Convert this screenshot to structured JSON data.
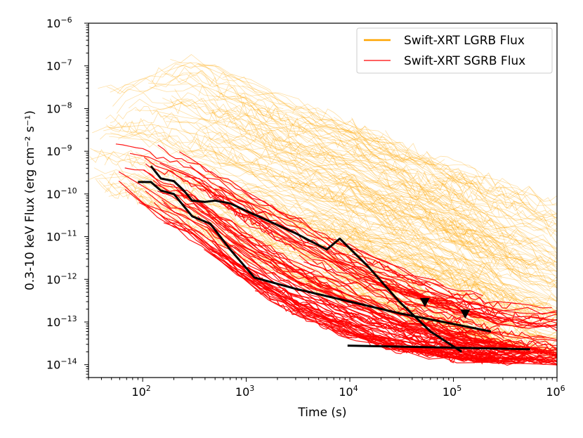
{
  "chart_data": {
    "type": "line",
    "title": "",
    "xlabel": "Time (s)",
    "ylabel": "0.3-10 keV Flux (erg cm⁻² s⁻¹)",
    "xscale": "log",
    "yscale": "log",
    "xlim": [
      30,
      1000000
    ],
    "ylim": [
      5e-15,
      1e-06
    ],
    "x_ticks": [
      {
        "value": 100,
        "base": "10",
        "exp": "2"
      },
      {
        "value": 1000,
        "base": "10",
        "exp": "3"
      },
      {
        "value": 10000,
        "base": "10",
        "exp": "4"
      },
      {
        "value": 100000,
        "base": "10",
        "exp": "5"
      },
      {
        "value": 1000000,
        "base": "10",
        "exp": "6"
      }
    ],
    "y_ticks": [
      {
        "value": 1e-14,
        "base": "10",
        "exp": "−14"
      },
      {
        "value": 1e-13,
        "base": "10",
        "exp": "−13"
      },
      {
        "value": 1e-12,
        "base": "10",
        "exp": "−12"
      },
      {
        "value": 1e-11,
        "base": "10",
        "exp": "−11"
      },
      {
        "value": 1e-10,
        "base": "10",
        "exp": "−10"
      },
      {
        "value": 1e-09,
        "base": "10",
        "exp": "−9"
      },
      {
        "value": 1e-08,
        "base": "10",
        "exp": "−8"
      },
      {
        "value": 1e-07,
        "base": "10",
        "exp": "−7"
      },
      {
        "value": 1e-06,
        "base": "10",
        "exp": "−6"
      }
    ],
    "legend": {
      "position": "top-right",
      "entries": [
        {
          "label": "Swift-XRT LGRB Flux",
          "color": "#ffa500"
        },
        {
          "label": "Swift-XRT SGRB Flux",
          "color": "#ff0000"
        }
      ]
    },
    "series": [
      {
        "name": "Swift-XRT LGRB Flux",
        "color": "#ffa500",
        "band": {
          "x": [
            30,
            100,
            300,
            1000,
            3000,
            10000,
            30000,
            100000,
            300000,
            1000000
          ],
          "upper": [
            3e-08,
            1e-07,
            5e-07,
            1e-07,
            3e-08,
            1e-08,
            3e-09,
            1e-09,
            4e-10,
            1.5e-10
          ],
          "center": [
            3e-09,
            5e-09,
            2e-09,
            8e-10,
            2.5e-10,
            1e-10,
            3e-11,
            8e-12,
            2e-12,
            5e-13
          ],
          "lower": [
            1e-10,
            3e-11,
            5e-12,
            1e-12,
            3e-13,
            1e-13,
            5e-14,
            2e-14,
            1e-14,
            8e-15
          ]
        }
      },
      {
        "name": "Swift-XRT SGRB Flux",
        "color": "#ff0000",
        "band": {
          "x": [
            50,
            100,
            300,
            1000,
            3000,
            10000,
            30000,
            100000,
            300000,
            1000000
          ],
          "upper": [
            3e-09,
            3e-09,
            1e-09,
            2e-10,
            5e-11,
            1e-11,
            3e-12,
            1e-12,
            5e-13,
            5e-13
          ],
          "center": [
            5e-10,
            3e-10,
            8e-11,
            1e-11,
            2e-12,
            5e-13,
            1.5e-13,
            6e-14,
            3e-14,
            2e-14
          ],
          "lower": [
            1.5e-10,
            3e-11,
            5e-12,
            5e-13,
            1e-13,
            3e-14,
            1.5e-14,
            1e-14,
            1e-14,
            1e-14
          ]
        }
      },
      {
        "name": "highlight-1",
        "color": "#000000",
        "x": [
          120,
          150,
          200,
          250,
          300,
          400,
          500,
          700,
          1000,
          3000,
          6000,
          8000,
          15000,
          30000,
          60000,
          120000
        ],
        "y": [
          4.5e-10,
          2.3e-10,
          2e-10,
          1.2e-10,
          7e-11,
          6.5e-11,
          7e-11,
          6e-11,
          4e-11,
          1.2e-11,
          5e-12,
          9e-12,
          2e-12,
          3e-13,
          6e-14,
          2e-14
        ]
      },
      {
        "name": "highlight-2",
        "color": "#000000",
        "x": [
          90,
          120,
          150,
          200,
          300,
          450,
          700,
          1200,
          3000,
          10000,
          30000,
          80000,
          230000
        ],
        "y": [
          1.9e-10,
          1.9e-10,
          1.2e-10,
          1e-10,
          3e-11,
          2e-11,
          5e-12,
          1.1e-12,
          6e-13,
          3e-13,
          1.6e-13,
          1e-13,
          6e-14
        ]
      },
      {
        "name": "highlight-3",
        "color": "#000000",
        "x": [
          9500,
          550000
        ],
        "y": [
          2.8e-14,
          2.3e-14
        ]
      }
    ],
    "upper_limits": [
      {
        "x": 53000,
        "y": 2.8e-13
      },
      {
        "x": 130000,
        "y": 1.5e-13
      }
    ]
  }
}
